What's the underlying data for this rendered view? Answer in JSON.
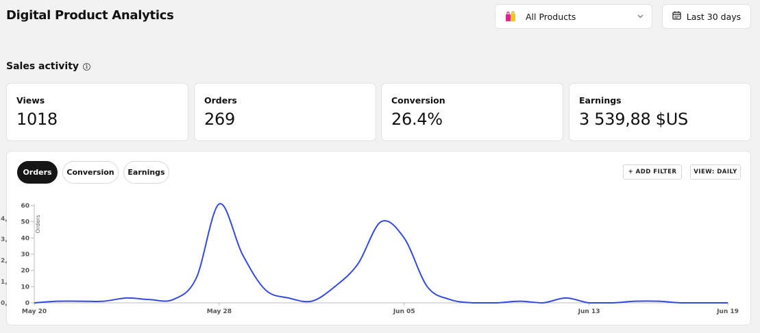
{
  "header": {
    "title": "Digital Product Analytics",
    "product_select": {
      "label": "All Products",
      "icon": "shopping-bag-icon"
    },
    "date_range": {
      "label": "Last 30 days",
      "icon": "calendar-icon"
    }
  },
  "sales": {
    "title": "Sales activity",
    "stats": [
      {
        "label": "Views",
        "value": "1018"
      },
      {
        "label": "Orders",
        "value": "269"
      },
      {
        "label": "Conversion",
        "value": "26.4%"
      },
      {
        "label": "Earnings",
        "value": "3 539,88 $US"
      }
    ]
  },
  "chart_panel": {
    "tabs": [
      "Orders",
      "Conversion",
      "Earnings"
    ],
    "active_tab": "Orders",
    "add_filter_label": "+ ADD FILTER",
    "view_label": "VIEW: DAILY"
  },
  "colors": {
    "line": "#3348e0",
    "active_tab": "#161616"
  },
  "chart_data": {
    "type": "line",
    "ylabel": "Orders",
    "ylim": [
      0,
      60
    ],
    "yticks": [
      0,
      10,
      20,
      30,
      40,
      50,
      60
    ],
    "xlim": [
      0,
      30
    ],
    "xticks": [
      {
        "x": 0,
        "label": "May 20"
      },
      {
        "x": 8,
        "label": "May 28"
      },
      {
        "x": 16,
        "label": "Jun 05"
      },
      {
        "x": 24,
        "label": "Jun 13"
      },
      {
        "x": 30,
        "label": "Jun 19"
      }
    ],
    "secondary_y_ticks_partial": [
      "0,",
      "1,",
      "2,",
      "3,",
      "4,"
    ],
    "grid": false,
    "series": [
      {
        "x": [
          0,
          1,
          2,
          3,
          4,
          5,
          6,
          7,
          8,
          9,
          10,
          11,
          12,
          13,
          14,
          15,
          16,
          17,
          18,
          19,
          20,
          21,
          22,
          23,
          24,
          25,
          26,
          27,
          28,
          29,
          30
        ],
        "values": [
          0,
          1,
          1,
          1,
          3,
          2,
          2,
          15,
          61,
          30,
          8,
          3,
          1,
          10,
          24,
          50,
          40,
          10,
          2,
          0,
          0,
          1,
          0,
          3,
          0,
          0,
          1,
          1,
          0,
          0,
          0
        ]
      }
    ]
  }
}
